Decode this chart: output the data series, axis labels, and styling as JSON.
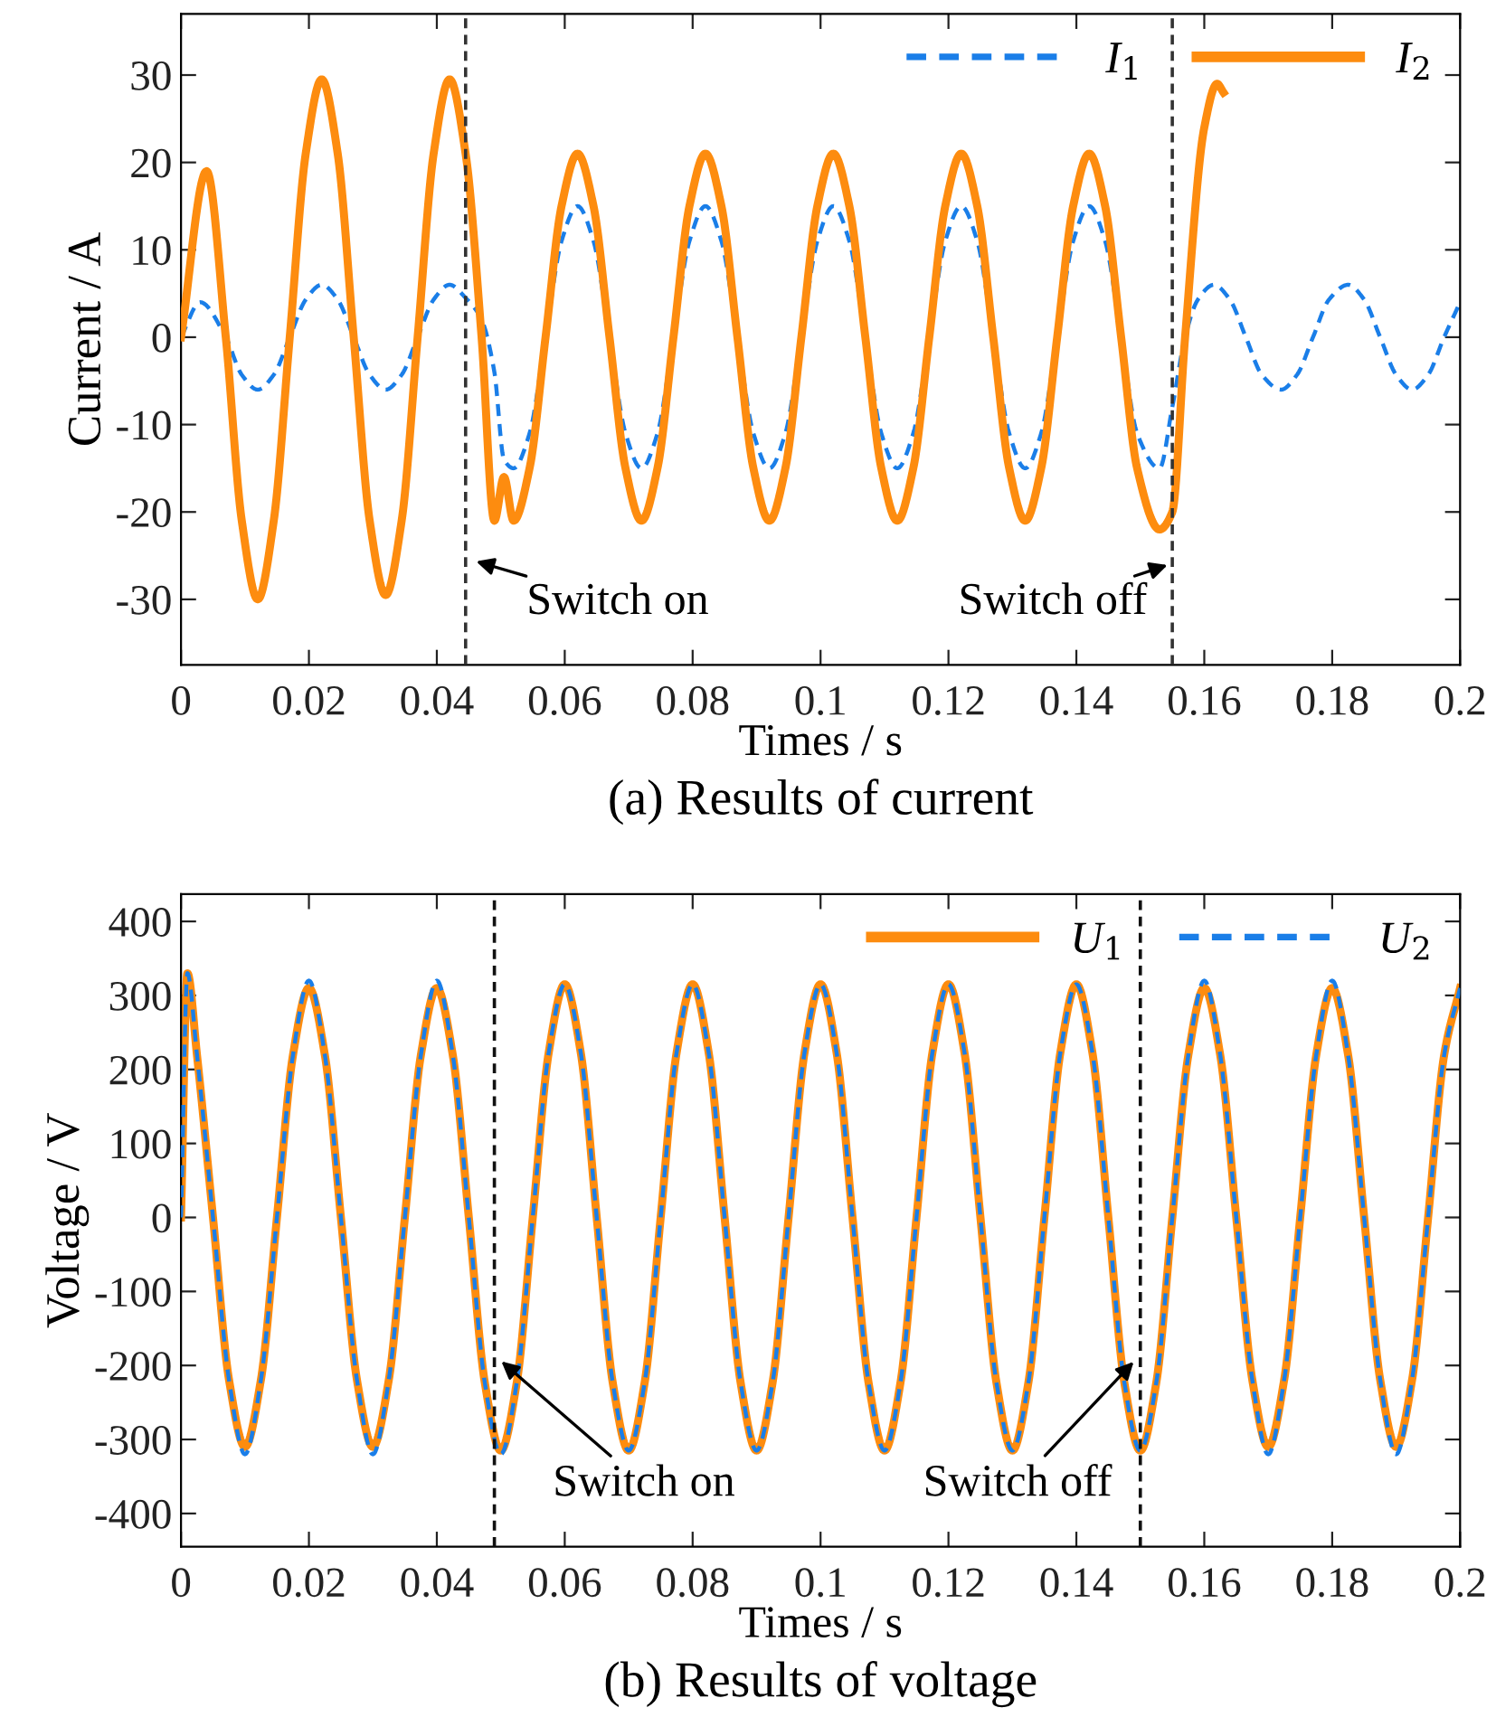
{
  "chart_data": [
    {
      "type": "line",
      "title": "(a) Results of current",
      "xlabel": "Times / s",
      "ylabel": "Current / A",
      "xlim": [
        0,
        0.2
      ],
      "xticks": [
        0,
        0.02,
        0.04,
        0.06,
        0.08,
        0.1,
        0.12,
        0.14,
        0.16,
        0.18,
        0.2
      ],
      "ylim": [
        -37.5,
        37
      ],
      "yticks": [
        -30,
        -20,
        -10,
        0,
        10,
        20,
        30
      ],
      "grid": false,
      "legend": "top right",
      "marker": "none",
      "series": [
        {
          "name": "I$_{1}$",
          "color": "#1a7ee8",
          "line_style": "dashed",
          "x": [
            0,
            0.003,
            0.007,
            0.0095,
            0.012,
            0.0145,
            0.017,
            0.0195,
            0.022,
            0.0245,
            0.027,
            0.0295,
            0.032,
            0.0345,
            0.037,
            0.0395,
            0.042,
            0.0445,
            0.047,
            0.049,
            0.0505,
            0.052,
            0.0545,
            0.057,
            0.0595,
            0.062,
            0.0645,
            0.067,
            0.0695,
            0.072,
            0.0745,
            0.077,
            0.0795,
            0.082,
            0.0845,
            0.087,
            0.0895,
            0.092,
            0.0945,
            0.097,
            0.0995,
            0.102,
            0.1045,
            0.107,
            0.1095,
            0.112,
            0.1145,
            0.117,
            0.1195,
            0.122,
            0.1245,
            0.127,
            0.1295,
            0.132,
            0.1345,
            0.137,
            0.1395,
            0.142,
            0.1445,
            0.147,
            0.1495,
            0.153,
            0.155,
            0.157,
            0.159,
            0.1615,
            0.164,
            0.1665,
            0.169,
            0.172,
            0.1745,
            0.177,
            0.1795,
            0.1825,
            0.185,
            0.1875,
            0.19,
            0.1925,
            0.195,
            0.1975,
            0.2
          ],
          "values": [
            0,
            4,
            0,
            -4.3,
            -6,
            -4.3,
            0,
            4.3,
            6,
            4.3,
            0,
            -4.3,
            -6,
            -4.3,
            0,
            4.3,
            6,
            4.5,
            2,
            -4,
            -14,
            -15,
            -11,
            0,
            11,
            15,
            11,
            0,
            -11,
            -15,
            -11,
            0,
            11,
            15,
            11,
            0,
            -11,
            -15,
            -11,
            0,
            11,
            15,
            11,
            0,
            -11,
            -15,
            -11,
            0,
            11,
            15,
            11,
            0,
            -11,
            -15,
            -11,
            0,
            11,
            15,
            11,
            0,
            -11,
            -15,
            -8,
            0,
            4.3,
            6,
            4.3,
            0,
            -4.3,
            -6,
            -4.3,
            0,
            4.3,
            6,
            4.3,
            0,
            -4.3,
            -6,
            -4.3,
            0,
            4
          ]
        },
        {
          "name": "I$_{2}$",
          "color": "#fd8c0f",
          "line_style": "solid",
          "x": [
            0,
            0.004,
            0.007,
            0.0095,
            0.012,
            0.0145,
            0.017,
            0.0195,
            0.022,
            0.0245,
            0.027,
            0.0295,
            0.032,
            0.0345,
            0.037,
            0.0395,
            0.042,
            0.0445,
            0.047,
            0.049,
            0.0505,
            0.052,
            0.0545,
            0.057,
            0.0595,
            0.062,
            0.0645,
            0.067,
            0.0695,
            0.072,
            0.0745,
            0.077,
            0.0795,
            0.082,
            0.0845,
            0.087,
            0.0895,
            0.092,
            0.0945,
            0.097,
            0.0995,
            0.102,
            0.1045,
            0.107,
            0.1095,
            0.112,
            0.1145,
            0.117,
            0.1195,
            0.122,
            0.1245,
            0.127,
            0.1295,
            0.132,
            0.1345,
            0.137,
            0.1395,
            0.142,
            0.1445,
            0.147,
            0.1495,
            0.153,
            0.155,
            0.157,
            0.16,
            0.162,
            0.163
          ],
          "values": [
            0,
            19,
            0,
            -21,
            -30,
            -21,
            0,
            21,
            29.5,
            21,
            0,
            -21,
            -29.5,
            -21,
            0,
            21,
            29.5,
            21,
            0,
            -21,
            -16,
            -21,
            -15,
            0,
            15,
            21,
            15,
            0,
            -15,
            -21,
            -15,
            0,
            15,
            21,
            15,
            0,
            -15,
            -21,
            -15,
            0,
            15,
            21,
            15,
            0,
            -15,
            -21,
            -15,
            0,
            15,
            21,
            15,
            0,
            -15,
            -21,
            -15,
            0,
            15,
            21,
            15,
            0,
            -15,
            -22,
            -20,
            0,
            24,
            29,
            28
          ]
        }
      ],
      "ref_lines": [
        {
          "axis": "x",
          "value": 0.0445,
          "color": "#333333",
          "line_style": "dashed"
        },
        {
          "axis": "x",
          "value": 0.155,
          "color": "#333333",
          "line_style": "dashed"
        }
      ],
      "annotations": [
        {
          "text": "Switch on",
          "x": 0.0454,
          "y": -25.5
        },
        {
          "text": "Switch off",
          "x": 0.155,
          "y": -25.9
        }
      ]
    },
    {
      "type": "line",
      "title": "(b) Results of voltage",
      "xlabel": "Times / s",
      "ylabel": "Voltage / V",
      "xlim": [
        0,
        0.2
      ],
      "xticks": [
        0,
        0.02,
        0.04,
        0.06,
        0.08,
        0.1,
        0.12,
        0.14,
        0.16,
        0.18,
        0.2
      ],
      "ylim": [
        -445,
        437
      ],
      "yticks": [
        -400,
        -300,
        -200,
        -100,
        0,
        100,
        200,
        300,
        400
      ],
      "grid": false,
      "legend": "top right",
      "marker": "none",
      "series": [
        {
          "name": "U$_{1}$",
          "color": "#fd8c0f",
          "line_style": "solid",
          "x": [
            0,
            0.001,
            0.0025,
            0.005,
            0.0075,
            0.01,
            0.0125,
            0.015,
            0.0175,
            0.02,
            0.0225,
            0.025,
            0.0275,
            0.03,
            0.0325,
            0.035,
            0.0375,
            0.04,
            0.0425,
            0.045,
            0.0475,
            0.05,
            0.0525,
            0.055,
            0.0575,
            0.06,
            0.0625,
            0.065,
            0.0675,
            0.07,
            0.0725,
            0.075,
            0.0775,
            0.08,
            0.0825,
            0.085,
            0.0875,
            0.09,
            0.0925,
            0.095,
            0.0975,
            0.1,
            0.1025,
            0.105,
            0.1075,
            0.11,
            0.1125,
            0.115,
            0.1175,
            0.12,
            0.1225,
            0.125,
            0.1275,
            0.13,
            0.1325,
            0.135,
            0.1375,
            0.14,
            0.1425,
            0.145,
            0.1475,
            0.15,
            0.1525,
            0.155,
            0.1575,
            0.16,
            0.1625,
            0.165,
            0.1675,
            0.17,
            0.1725,
            0.175,
            0.1775,
            0.18,
            0.1825,
            0.185,
            0.1875,
            0.19,
            0.1925,
            0.195,
            0.1975,
            0.2
          ],
          "values": [
            0,
            330,
            219,
            0,
            -219,
            -310,
            -219,
            0,
            219,
            310,
            219,
            0,
            -219,
            -310,
            -219,
            0,
            219,
            310,
            219,
            0,
            -223,
            -315,
            -223,
            0,
            223,
            315,
            223,
            0,
            -223,
            -315,
            -223,
            0,
            223,
            315,
            223,
            0,
            -223,
            -315,
            -223,
            0,
            223,
            315,
            223,
            0,
            -223,
            -315,
            -223,
            0,
            223,
            315,
            223,
            0,
            -223,
            -315,
            -223,
            0,
            223,
            315,
            223,
            0,
            -223,
            -315,
            -223,
            0,
            219,
            310,
            219,
            0,
            -219,
            -310,
            -219,
            0,
            219,
            310,
            219,
            0,
            -219,
            -310,
            -219,
            0,
            219,
            310
          ]
        },
        {
          "name": "U$_{2}$",
          "color": "#1a7ee8",
          "line_style": "dashed",
          "x": [
            0,
            0.001,
            0.0025,
            0.005,
            0.0075,
            0.01,
            0.0125,
            0.015,
            0.0175,
            0.02,
            0.0225,
            0.025,
            0.0275,
            0.03,
            0.0325,
            0.035,
            0.0375,
            0.04,
            0.0425,
            0.045,
            0.0475,
            0.05,
            0.0525,
            0.055,
            0.0575,
            0.06,
            0.0625,
            0.065,
            0.0675,
            0.07,
            0.0725,
            0.075,
            0.0775,
            0.08,
            0.0825,
            0.085,
            0.0875,
            0.09,
            0.0925,
            0.095,
            0.0975,
            0.1,
            0.1025,
            0.105,
            0.1075,
            0.11,
            0.1125,
            0.115,
            0.1175,
            0.12,
            0.1225,
            0.125,
            0.1275,
            0.13,
            0.1325,
            0.135,
            0.1375,
            0.14,
            0.1425,
            0.145,
            0.1475,
            0.15,
            0.1525,
            0.155,
            0.1575,
            0.16,
            0.1625,
            0.165,
            0.1675,
            0.17,
            0.1725,
            0.175,
            0.1775,
            0.18,
            0.1825,
            0.185,
            0.1875,
            0.19,
            0.1925,
            0.195,
            0.1975,
            0.2
          ],
          "values": [
            0,
            330,
            219,
            0,
            -219,
            -320,
            -219,
            0,
            219,
            320,
            219,
            0,
            -219,
            -320,
            -219,
            0,
            219,
            320,
            219,
            0,
            -223,
            -320,
            -223,
            0,
            223,
            315,
            223,
            0,
            -223,
            -315,
            -223,
            0,
            223,
            315,
            223,
            0,
            -223,
            -315,
            -223,
            0,
            223,
            315,
            223,
            0,
            -223,
            -315,
            -223,
            0,
            223,
            315,
            223,
            0,
            -223,
            -315,
            -223,
            0,
            223,
            315,
            223,
            0,
            -223,
            -315,
            -223,
            0,
            219,
            320,
            219,
            0,
            -219,
            -320,
            -219,
            0,
            219,
            320,
            219,
            0,
            -219,
            -320,
            -219,
            0,
            219,
            310
          ]
        }
      ],
      "ref_lines": [
        {
          "axis": "x",
          "value": 0.049,
          "color": "#111111",
          "line_style": "dashed"
        },
        {
          "axis": "x",
          "value": 0.15,
          "color": "#111111",
          "line_style": "dashed"
        }
      ],
      "annotations": [
        {
          "text": "Switch on",
          "x": 0.0495,
          "y": -190
        },
        {
          "text": "Switch off",
          "x": 0.1495,
          "y": -190
        }
      ]
    }
  ]
}
